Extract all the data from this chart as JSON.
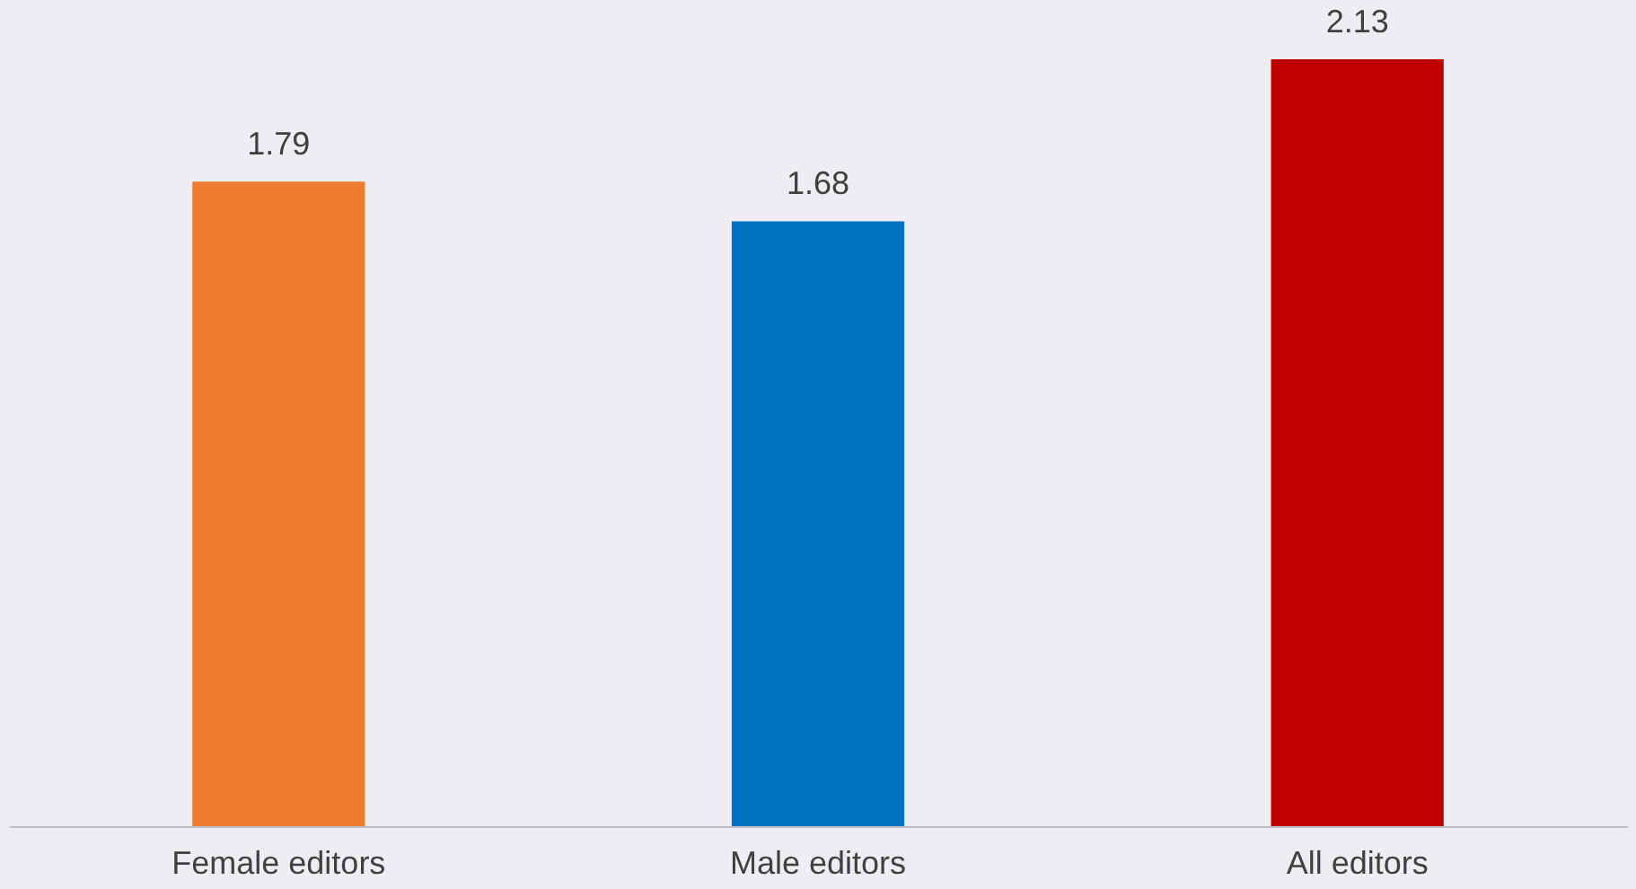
{
  "chart_data": {
    "type": "bar",
    "categories": [
      "Female editors",
      "Male editors",
      "All editors"
    ],
    "values": [
      1.79,
      1.68,
      2.13
    ],
    "colors": [
      "#ed7d31",
      "#0070c0",
      "#c00000"
    ],
    "data_labels": true,
    "grid": false,
    "tick_labels": "x"
  }
}
